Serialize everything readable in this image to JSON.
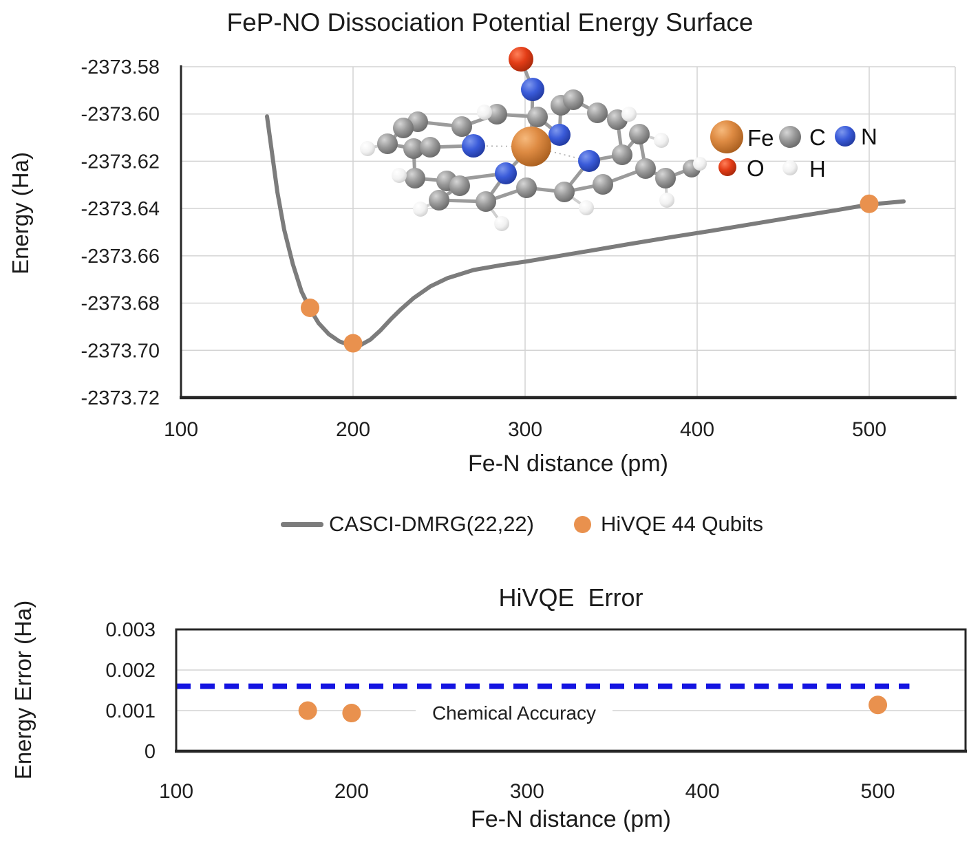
{
  "chart_data": [
    {
      "type": "line",
      "title": "FeP-NO Dissociation Potential Energy Surface",
      "xlabel": "Fe-N distance (pm)",
      "ylabel": "Energy (Ha)",
      "xlim": [
        100,
        550
      ],
      "ylim": [
        -2373.72,
        -2373.58
      ],
      "grid": true,
      "x_ticks": [
        {
          "v": 100,
          "label": "100"
        },
        {
          "v": 200,
          "label": "200"
        },
        {
          "v": 300,
          "label": "300"
        },
        {
          "v": 400,
          "label": "400"
        },
        {
          "v": 500,
          "label": "500"
        }
      ],
      "y_ticks": [
        {
          "v": -2373.58,
          "label": "-2373.58"
        },
        {
          "v": -2373.6,
          "label": "-2373.60"
        },
        {
          "v": -2373.62,
          "label": "-2373.62"
        },
        {
          "v": -2373.64,
          "label": "-2373.64"
        },
        {
          "v": -2373.66,
          "label": "-2373.66"
        },
        {
          "v": -2373.68,
          "label": "-2373.68"
        },
        {
          "v": -2373.7,
          "label": "-2373.70"
        },
        {
          "v": -2373.72,
          "label": "-2373.72"
        }
      ],
      "series": [
        {
          "name": "CASCI-DMRG(22,22)",
          "type": "line",
          "color": "#7C7C7C",
          "points": [
            [
              150,
              -2373.601
            ],
            [
              153,
              -2373.617
            ],
            [
              156,
              -2373.633
            ],
            [
              160,
              -2373.649
            ],
            [
              165,
              -2373.6635
            ],
            [
              170,
              -2373.675
            ],
            [
              175,
              -2373.6825
            ],
            [
              180,
              -2373.6885
            ],
            [
              186,
              -2373.6932
            ],
            [
              192,
              -2373.6962
            ],
            [
              198,
              -2373.6978
            ],
            [
              204,
              -2373.6979
            ],
            [
              210,
              -2373.6955
            ],
            [
              216,
              -2373.6915
            ],
            [
              222,
              -2373.6868
            ],
            [
              228,
              -2373.6825
            ],
            [
              235,
              -2373.678
            ],
            [
              245,
              -2373.6729
            ],
            [
              255,
              -2373.6694
            ],
            [
              270,
              -2373.666
            ],
            [
              285,
              -2373.6641
            ],
            [
              300,
              -2373.6625
            ],
            [
              320,
              -2373.66
            ],
            [
              340,
              -2373.6576
            ],
            [
              360,
              -2373.6551
            ],
            [
              385,
              -2373.6521
            ],
            [
              410,
              -2373.6492
            ],
            [
              435,
              -2373.6462
            ],
            [
              460,
              -2373.6432
            ],
            [
              480,
              -2373.6408
            ],
            [
              500,
              -2373.6383
            ],
            [
              520,
              -2373.637
            ]
          ]
        },
        {
          "name": "HiVQE 44 Qubits",
          "type": "scatter",
          "color": "#E9914E",
          "points": [
            [
              175,
              -2373.682
            ],
            [
              200,
              -2373.697
            ],
            [
              500,
              -2373.638
            ]
          ]
        }
      ],
      "atom_legend": [
        {
          "symbol": "Fe",
          "color": "#D9813B"
        },
        {
          "symbol": "C",
          "color": "#9A9A9A"
        },
        {
          "symbol": "N",
          "color": "#3A5BD9"
        },
        {
          "symbol": "O",
          "color": "#E23C16"
        },
        {
          "symbol": "H",
          "color": "#F2F2F2"
        }
      ]
    },
    {
      "type": "scatter",
      "title": "HiVQE  Error",
      "xlabel": "Fe-N distance (pm)",
      "ylabel": "Energy Error (Ha)",
      "xlim": [
        100,
        550
      ],
      "ylim": [
        0,
        0.003
      ],
      "grid": true,
      "x_ticks": [
        {
          "v": 100,
          "label": "100"
        },
        {
          "v": 200,
          "label": "200"
        },
        {
          "v": 300,
          "label": "300"
        },
        {
          "v": 400,
          "label": "400"
        },
        {
          "v": 500,
          "label": "500"
        }
      ],
      "y_ticks": [
        {
          "v": 0.003,
          "label": "0.003"
        },
        {
          "v": 0.002,
          "label": "0.002"
        },
        {
          "v": 0.001,
          "label": "0.001"
        },
        {
          "v": 0,
          "label": "0"
        }
      ],
      "series": [
        {
          "name": "HiVQE 44 Qubits",
          "type": "scatter",
          "color": "#E9914E",
          "points": [
            [
              175,
              0.001
            ],
            [
              200,
              0.00094
            ],
            [
              500,
              0.00114
            ]
          ]
        }
      ],
      "annotations": [
        {
          "type": "hline",
          "label": "Chemical Accuracy",
          "y": 0.0016,
          "x_range": [
            100,
            518
          ],
          "style": "dashed",
          "color": "#1414E1"
        }
      ]
    }
  ]
}
